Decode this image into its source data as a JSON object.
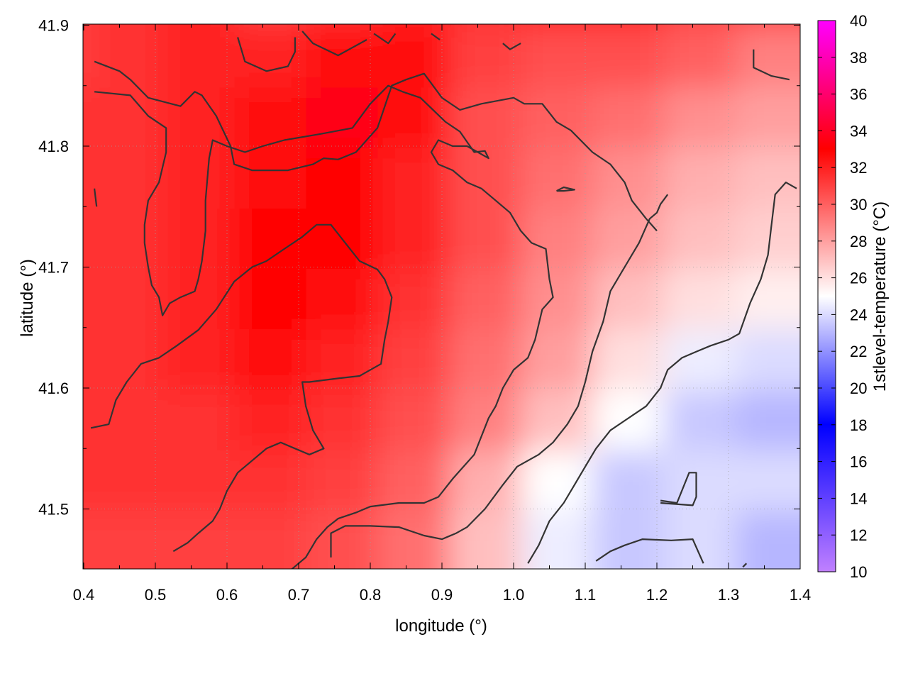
{
  "chart_data": {
    "type": "heatmap",
    "title": "",
    "xlabel": "longitude (°)",
    "ylabel": "latitude (°)",
    "colorbar_label": "1stlevel-temperature (°C)",
    "xlim": [
      0.4,
      1.4
    ],
    "ylim": [
      41.45,
      41.9
    ],
    "x_ticks": [
      "0.4",
      "0.5",
      "0.6",
      "0.7",
      "0.8",
      "0.9",
      "1.0",
      "1.1",
      "1.2",
      "1.3",
      "1.4"
    ],
    "y_ticks": [
      "41.5",
      "41.6",
      "41.7",
      "41.8",
      "41.9"
    ],
    "colorbar_range": [
      10,
      40
    ],
    "colorbar_ticks": [
      "10",
      "12",
      "14",
      "16",
      "18",
      "20",
      "22",
      "24",
      "26",
      "28",
      "30",
      "32",
      "34",
      "36",
      "38",
      "40"
    ],
    "colormap": [
      {
        "value": 10,
        "color": "#c080ff"
      },
      {
        "value": 18,
        "color": "#0000ff"
      },
      {
        "value": 25,
        "color": "#ffffff"
      },
      {
        "value": 33,
        "color": "#ff0000"
      },
      {
        "value": 40,
        "color": "#ff00ff"
      }
    ],
    "grid": true,
    "temperature_field": {
      "x": [
        0.4,
        0.5,
        0.6,
        0.7,
        0.8,
        0.9,
        1.0,
        1.1,
        1.2,
        1.3,
        1.4
      ],
      "y": [
        41.9,
        41.85,
        41.8,
        41.75,
        41.7,
        41.65,
        41.6,
        41.55,
        41.5,
        41.45
      ],
      "values": [
        [
          31,
          31.5,
          32,
          31,
          31.5,
          32,
          31.5,
          32,
          32,
          31,
          31
        ],
        [
          31,
          31.5,
          32,
          32,
          32.5,
          32.5,
          31,
          30.5,
          30.5,
          30,
          29
        ],
        [
          31.5,
          31.5,
          32,
          32.5,
          33.5,
          32.5,
          30.5,
          30,
          29.5,
          28.5,
          28
        ],
        [
          31.5,
          31.5,
          32,
          32.5,
          33,
          32,
          30.5,
          29.5,
          28.5,
          27.5,
          27
        ],
        [
          31.5,
          31.5,
          32,
          33,
          33,
          32,
          30.5,
          29,
          28,
          27,
          26.5
        ],
        [
          31.5,
          31.5,
          32,
          33,
          32.5,
          31.5,
          30,
          28.5,
          27,
          26,
          25.5
        ],
        [
          31.5,
          31.5,
          32,
          32.5,
          32,
          31,
          29.5,
          28,
          26,
          24.5,
          24
        ],
        [
          31.5,
          31.5,
          31.5,
          32,
          31.5,
          30.5,
          29,
          27,
          25,
          23.5,
          23
        ],
        [
          31.5,
          31.5,
          31.5,
          31.5,
          31,
          30,
          27.5,
          25,
          23.5,
          24,
          24
        ],
        [
          31,
          31,
          31,
          31,
          30.5,
          29.5,
          27,
          24.5,
          23.5,
          24,
          23
        ]
      ]
    },
    "contours": [
      {
        "level": "c1",
        "points": [
          [
            0.415,
            41.765
          ],
          [
            0.418,
            41.75
          ]
        ]
      },
      {
        "level": "c1",
        "points": [
          [
            0.415,
            41.87
          ],
          [
            0.45,
            41.862
          ],
          [
            0.465,
            41.855
          ],
          [
            0.49,
            41.84
          ],
          [
            0.535,
            41.833
          ],
          [
            0.555,
            41.845
          ],
          [
            0.565,
            41.842
          ],
          [
            0.585,
            41.825
          ],
          [
            0.605,
            41.8
          ],
          [
            0.61,
            41.785
          ],
          [
            0.635,
            41.78
          ],
          [
            0.685,
            41.78
          ],
          [
            0.72,
            41.785
          ],
          [
            0.735,
            41.79
          ],
          [
            0.755,
            41.789
          ],
          [
            0.78,
            41.795
          ],
          [
            0.81,
            41.815
          ],
          [
            0.83,
            41.85
          ],
          [
            0.85,
            41.855
          ],
          [
            0.875,
            41.86
          ],
          [
            0.9,
            41.84
          ],
          [
            0.925,
            41.83
          ],
          [
            0.955,
            41.835
          ],
          [
            1.0,
            41.84
          ],
          [
            1.015,
            41.835
          ],
          [
            1.04,
            41.835
          ],
          [
            1.06,
            41.82
          ],
          [
            1.08,
            41.813
          ],
          [
            1.11,
            41.795
          ],
          [
            1.135,
            41.785
          ],
          [
            1.155,
            41.77
          ],
          [
            1.165,
            41.755
          ],
          [
            1.185,
            41.74
          ],
          [
            1.2,
            41.73
          ]
        ]
      },
      {
        "level": "c2",
        "points": [
          [
            0.615,
            41.89
          ],
          [
            0.625,
            41.87
          ],
          [
            0.655,
            41.862
          ],
          [
            0.685,
            41.866
          ],
          [
            0.695,
            41.878
          ],
          [
            0.695,
            41.89
          ]
        ]
      },
      {
        "level": "c3",
        "points": [
          [
            0.705,
            41.895
          ],
          [
            0.72,
            41.885
          ],
          [
            0.755,
            41.875
          ],
          [
            0.795,
            41.888
          ]
        ]
      },
      {
        "level": "c3",
        "points": [
          [
            0.805,
            41.893
          ],
          [
            0.825,
            41.885
          ],
          [
            0.835,
            41.893
          ]
        ]
      },
      {
        "level": "c3",
        "points": [
          [
            0.885,
            41.893
          ],
          [
            0.897,
            41.888
          ]
        ]
      },
      {
        "level": "c3",
        "points": [
          [
            0.985,
            41.885
          ],
          [
            0.995,
            41.88
          ],
          [
            1.01,
            41.885
          ]
        ]
      },
      {
        "level": "c4",
        "points": [
          [
            1.335,
            41.88
          ],
          [
            1.335,
            41.865
          ],
          [
            1.36,
            41.858
          ],
          [
            1.385,
            41.855
          ]
        ]
      },
      {
        "level": "c5",
        "points": [
          [
            0.415,
            41.845
          ],
          [
            0.465,
            41.842
          ],
          [
            0.49,
            41.825
          ],
          [
            0.515,
            41.815
          ],
          [
            0.515,
            41.795
          ],
          [
            0.505,
            41.77
          ],
          [
            0.49,
            41.755
          ],
          [
            0.485,
            41.735
          ],
          [
            0.485,
            41.72
          ],
          [
            0.49,
            41.7
          ],
          [
            0.495,
            41.685
          ],
          [
            0.505,
            41.675
          ],
          [
            0.51,
            41.66
          ],
          [
            0.52,
            41.67
          ],
          [
            0.535,
            41.675
          ],
          [
            0.555,
            41.68
          ],
          [
            0.56,
            41.69
          ],
          [
            0.565,
            41.705
          ],
          [
            0.57,
            41.73
          ],
          [
            0.57,
            41.755
          ],
          [
            0.575,
            41.79
          ],
          [
            0.58,
            41.805
          ],
          [
            0.6,
            41.8
          ],
          [
            0.625,
            41.795
          ],
          [
            0.65,
            41.8
          ],
          [
            0.68,
            41.805
          ],
          [
            0.73,
            41.81
          ],
          [
            0.775,
            41.815
          ],
          [
            0.8,
            41.835
          ],
          [
            0.825,
            41.85
          ],
          [
            0.845,
            41.845
          ],
          [
            0.87,
            41.84
          ],
          [
            0.905,
            41.82
          ],
          [
            0.925,
            41.812
          ],
          [
            0.945,
            41.795
          ],
          [
            0.96,
            41.796
          ],
          [
            0.965,
            41.79
          ],
          [
            0.935,
            41.8
          ],
          [
            0.915,
            41.8
          ],
          [
            0.895,
            41.805
          ],
          [
            0.885,
            41.795
          ],
          [
            0.895,
            41.785
          ],
          [
            0.915,
            41.78
          ],
          [
            0.935,
            41.77
          ],
          [
            0.955,
            41.765
          ],
          [
            0.975,
            41.755
          ],
          [
            0.995,
            41.745
          ],
          [
            1.01,
            41.73
          ],
          [
            1.025,
            41.72
          ],
          [
            1.045,
            41.715
          ],
          [
            1.05,
            41.69
          ],
          [
            1.055,
            41.675
          ],
          [
            1.04,
            41.665
          ],
          [
            1.03,
            41.64
          ],
          [
            1.02,
            41.625
          ],
          [
            1.0,
            41.615
          ],
          [
            0.985,
            41.6
          ],
          [
            0.975,
            41.585
          ],
          [
            0.965,
            41.575
          ],
          [
            0.945,
            41.545
          ],
          [
            0.915,
            41.525
          ],
          [
            0.895,
            41.51
          ],
          [
            0.875,
            41.505
          ],
          [
            0.84,
            41.505
          ],
          [
            0.8,
            41.502
          ],
          [
            0.78,
            41.497
          ],
          [
            0.755,
            41.492
          ],
          [
            0.74,
            41.485
          ],
          [
            0.725,
            41.475
          ],
          [
            0.71,
            41.46
          ],
          [
            0.69,
            41.45
          ]
        ]
      },
      {
        "level": "c6",
        "points": [
          [
            1.06,
            41.763
          ],
          [
            1.07,
            41.766
          ],
          [
            1.085,
            41.764
          ],
          [
            1.07,
            41.763
          ],
          [
            1.06,
            41.763
          ]
        ]
      },
      {
        "level": "c7",
        "points": [
          [
            0.41,
            41.567
          ],
          [
            0.435,
            41.57
          ],
          [
            0.445,
            41.59
          ],
          [
            0.46,
            41.605
          ],
          [
            0.48,
            41.62
          ],
          [
            0.505,
            41.625
          ],
          [
            0.53,
            41.635
          ],
          [
            0.56,
            41.648
          ],
          [
            0.585,
            41.665
          ],
          [
            0.61,
            41.688
          ],
          [
            0.635,
            41.7
          ],
          [
            0.655,
            41.705
          ],
          [
            0.68,
            41.715
          ],
          [
            0.705,
            41.725
          ],
          [
            0.725,
            41.735
          ],
          [
            0.745,
            41.735
          ],
          [
            0.765,
            41.72
          ],
          [
            0.785,
            41.705
          ],
          [
            0.81,
            41.698
          ],
          [
            0.82,
            41.69
          ],
          [
            0.83,
            41.675
          ],
          [
            0.825,
            41.655
          ],
          [
            0.82,
            41.64
          ],
          [
            0.815,
            41.62
          ],
          [
            0.8,
            41.615
          ],
          [
            0.785,
            41.61
          ],
          [
            0.755,
            41.608
          ],
          [
            0.715,
            41.605
          ],
          [
            0.705,
            41.605
          ],
          [
            0.71,
            41.585
          ],
          [
            0.72,
            41.565
          ],
          [
            0.735,
            41.55
          ],
          [
            0.715,
            41.545
          ],
          [
            0.695,
            41.55
          ],
          [
            0.675,
            41.555
          ],
          [
            0.655,
            41.55
          ],
          [
            0.635,
            41.54
          ],
          [
            0.615,
            41.53
          ],
          [
            0.6,
            41.515
          ],
          [
            0.59,
            41.5
          ],
          [
            0.58,
            41.49
          ],
          [
            0.56,
            41.48
          ],
          [
            0.545,
            41.472
          ],
          [
            0.525,
            41.465
          ]
        ]
      },
      {
        "level": "c8",
        "points": [
          [
            0.745,
            41.46
          ],
          [
            0.745,
            41.48
          ],
          [
            0.765,
            41.486
          ],
          [
            0.8,
            41.486
          ],
          [
            0.84,
            41.485
          ],
          [
            0.875,
            41.478
          ],
          [
            0.9,
            41.475
          ],
          [
            0.92,
            41.48
          ],
          [
            0.935,
            41.485
          ],
          [
            0.96,
            41.5
          ],
          [
            0.985,
            41.52
          ],
          [
            1.005,
            41.535
          ],
          [
            1.035,
            41.545
          ],
          [
            1.055,
            41.555
          ],
          [
            1.075,
            41.57
          ],
          [
            1.09,
            41.585
          ],
          [
            1.1,
            41.605
          ],
          [
            1.11,
            41.63
          ],
          [
            1.125,
            41.655
          ],
          [
            1.135,
            41.68
          ],
          [
            1.15,
            41.695
          ],
          [
            1.16,
            41.705
          ],
          [
            1.175,
            41.72
          ],
          [
            1.19,
            41.74
          ],
          [
            1.2,
            41.745
          ],
          [
            1.205,
            41.752
          ],
          [
            1.215,
            41.76
          ]
        ]
      },
      {
        "level": "c9",
        "points": [
          [
            1.02,
            41.455
          ],
          [
            1.035,
            41.47
          ],
          [
            1.05,
            41.49
          ],
          [
            1.07,
            41.505
          ],
          [
            1.085,
            41.52
          ],
          [
            1.1,
            41.535
          ],
          [
            1.115,
            41.55
          ],
          [
            1.135,
            41.565
          ],
          [
            1.16,
            41.575
          ],
          [
            1.185,
            41.585
          ],
          [
            1.205,
            41.6
          ],
          [
            1.215,
            41.615
          ],
          [
            1.235,
            41.625
          ],
          [
            1.255,
            41.63
          ],
          [
            1.275,
            41.635
          ],
          [
            1.3,
            41.64
          ],
          [
            1.315,
            41.645
          ],
          [
            1.33,
            41.67
          ],
          [
            1.345,
            41.69
          ],
          [
            1.355,
            41.71
          ],
          [
            1.36,
            41.735
          ],
          [
            1.365,
            41.76
          ],
          [
            1.38,
            41.77
          ],
          [
            1.395,
            41.765
          ]
        ]
      },
      {
        "level": "c10",
        "points": [
          [
            1.205,
            41.507
          ],
          [
            1.228,
            41.505
          ],
          [
            1.245,
            41.53
          ],
          [
            1.255,
            41.53
          ],
          [
            1.255,
            41.51
          ],
          [
            1.25,
            41.503
          ],
          [
            1.205,
            41.505
          ]
        ]
      },
      {
        "level": "c11",
        "points": [
          [
            1.115,
            41.457
          ],
          [
            1.135,
            41.465
          ],
          [
            1.155,
            41.47
          ],
          [
            1.18,
            41.475
          ],
          [
            1.22,
            41.474
          ],
          [
            1.25,
            41.475
          ],
          [
            1.265,
            41.455
          ]
        ]
      },
      {
        "level": "c12",
        "points": [
          [
            1.32,
            41.452
          ],
          [
            1.325,
            41.455
          ]
        ]
      }
    ]
  }
}
